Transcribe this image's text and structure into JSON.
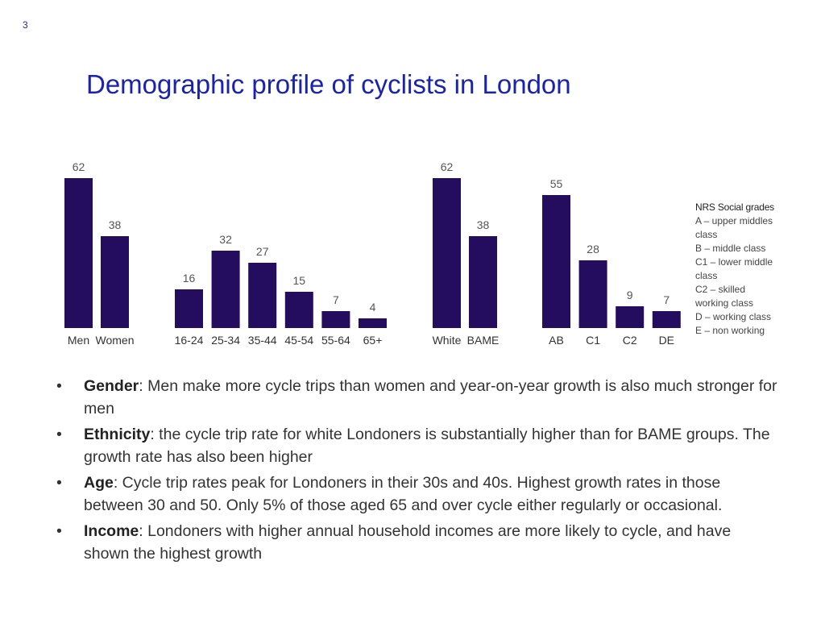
{
  "page_number": "3",
  "title": "Demographic profile of cyclists in London",
  "colors": {
    "bar": "#240c5e",
    "title": "#1a23b0"
  },
  "chart_data": [
    {
      "type": "bar",
      "categories": [
        "Men",
        "Women"
      ],
      "values": [
        62,
        38
      ]
    },
    {
      "type": "bar",
      "categories": [
        "16-24",
        "25-34",
        "35-44",
        "45-54",
        "55-64",
        "65+"
      ],
      "values": [
        16,
        32,
        27,
        15,
        7,
        4
      ]
    },
    {
      "type": "bar",
      "categories": [
        "White",
        "BAME"
      ],
      "values": [
        62,
        38
      ]
    },
    {
      "type": "bar",
      "categories": [
        "AB",
        "C1",
        "C2",
        "DE"
      ],
      "values": [
        55,
        28,
        9,
        7
      ]
    }
  ],
  "legend": {
    "title": "NRS Social grades",
    "lines": [
      "A – upper middles",
      "class",
      "B – middle class",
      "C1 – lower middle",
      "class",
      "C2 – skilled",
      "working class",
      "D – working class",
      "E – non working"
    ]
  },
  "bullets": [
    {
      "label": "Gender",
      "text": ": Men make more cycle trips than women and year-on-year growth is also much stronger for men"
    },
    {
      "label": "Ethnicity",
      "text": ": the cycle trip rate for white Londoners is substantially higher than for BAME groups. The growth rate has also been higher"
    },
    {
      "label": "Age",
      "text": ": Cycle trip rates peak for Londoners in their 30s and 40s. Highest growth rates in those between 30 and 50. Only 5% of those aged 65 and over cycle either regularly or occasional."
    },
    {
      "label": "Income",
      "text": ": Londoners with higher annual household incomes are more likely to cycle, and have shown the highest growth"
    }
  ]
}
